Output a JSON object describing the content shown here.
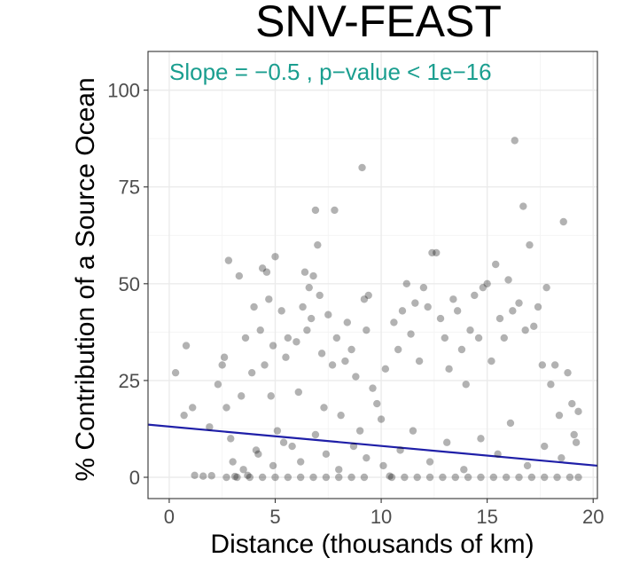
{
  "chart_data": {
    "type": "scatter",
    "title": "SNV-FEAST",
    "annotation": "Slope =  −0.5 , p−value < 1e−16",
    "annotation_color": "#1a9e8f",
    "xlabel": "Distance (thousands of km)",
    "ylabel": "% Contribution of a Source Ocean",
    "xlim": [
      -1,
      20.2
    ],
    "ylim": [
      -5.5,
      110
    ],
    "x_ticks": [
      0,
      5,
      10,
      15,
      20
    ],
    "y_ticks": [
      0,
      25,
      50,
      75,
      100
    ],
    "x_tick_labels": [
      "0",
      "5",
      "10",
      "15",
      "20"
    ],
    "y_tick_labels": [
      "0",
      "25",
      "50",
      "75",
      "100"
    ],
    "grid": true,
    "point_color": "#000000",
    "regression_line": {
      "color": "#1f1fa8",
      "x": [
        -1,
        20.2
      ],
      "y": [
        13.6,
        3.0
      ]
    },
    "points": [
      [
        0.3,
        27
      ],
      [
        0.8,
        34
      ],
      [
        0.7,
        16
      ],
      [
        1.1,
        18
      ],
      [
        1.2,
        0.5
      ],
      [
        1.6,
        0.3
      ],
      [
        1.9,
        13
      ],
      [
        2.0,
        0.4
      ],
      [
        2.3,
        24
      ],
      [
        2.5,
        29
      ],
      [
        2.6,
        31
      ],
      [
        2.8,
        56
      ],
      [
        2.7,
        18
      ],
      [
        2.9,
        10
      ],
      [
        3.1,
        0.2
      ],
      [
        3.3,
        52
      ],
      [
        3.4,
        21
      ],
      [
        3.6,
        36
      ],
      [
        3.7,
        0.5
      ],
      [
        3.9,
        27
      ],
      [
        4.0,
        44
      ],
      [
        4.1,
        7
      ],
      [
        4.3,
        38
      ],
      [
        4.4,
        54
      ],
      [
        4.6,
        53
      ],
      [
        4.7,
        46
      ],
      [
        4.5,
        29
      ],
      [
        4.8,
        21
      ],
      [
        4.9,
        34
      ],
      [
        5.0,
        57
      ],
      [
        5.1,
        12
      ],
      [
        5.3,
        43
      ],
      [
        5.5,
        31
      ],
      [
        5.6,
        36
      ],
      [
        5.8,
        8
      ],
      [
        6.0,
        35
      ],
      [
        6.1,
        22
      ],
      [
        6.3,
        44
      ],
      [
        6.4,
        53
      ],
      [
        6.5,
        38
      ],
      [
        6.6,
        49
      ],
      [
        6.7,
        41
      ],
      [
        6.8,
        52
      ],
      [
        6.9,
        69
      ],
      [
        7.0,
        60
      ],
      [
        7.1,
        47
      ],
      [
        7.2,
        32
      ],
      [
        7.3,
        18
      ],
      [
        7.5,
        42
      ],
      [
        7.7,
        29
      ],
      [
        7.8,
        69
      ],
      [
        7.9,
        36
      ],
      [
        8.1,
        16
      ],
      [
        8.3,
        30
      ],
      [
        8.4,
        40
      ],
      [
        8.6,
        33
      ],
      [
        8.8,
        26
      ],
      [
        9.0,
        12
      ],
      [
        9.1,
        80
      ],
      [
        9.2,
        46
      ],
      [
        9.3,
        38
      ],
      [
        9.4,
        47
      ],
      [
        9.6,
        23
      ],
      [
        9.8,
        19
      ],
      [
        10.0,
        15
      ],
      [
        10.2,
        28
      ],
      [
        10.4,
        0.3
      ],
      [
        10.6,
        40
      ],
      [
        10.8,
        33
      ],
      [
        11.0,
        43
      ],
      [
        11.2,
        50
      ],
      [
        11.4,
        37
      ],
      [
        11.6,
        45
      ],
      [
        11.8,
        30
      ],
      [
        12.0,
        49
      ],
      [
        12.2,
        44
      ],
      [
        12.4,
        58
      ],
      [
        12.6,
        58
      ],
      [
        12.8,
        41
      ],
      [
        13.0,
        36
      ],
      [
        13.2,
        28
      ],
      [
        13.4,
        46
      ],
      [
        13.6,
        43
      ],
      [
        13.8,
        33
      ],
      [
        14.0,
        24
      ],
      [
        14.2,
        38
      ],
      [
        14.4,
        47
      ],
      [
        14.6,
        36
      ],
      [
        14.8,
        49
      ],
      [
        15.0,
        50
      ],
      [
        15.2,
        30
      ],
      [
        15.4,
        55
      ],
      [
        15.6,
        41
      ],
      [
        15.8,
        36
      ],
      [
        16.0,
        51
      ],
      [
        16.2,
        43
      ],
      [
        16.3,
        87
      ],
      [
        16.5,
        45
      ],
      [
        16.7,
        70
      ],
      [
        16.8,
        38
      ],
      [
        17.0,
        60
      ],
      [
        17.2,
        39
      ],
      [
        17.4,
        44
      ],
      [
        17.6,
        29
      ],
      [
        17.8,
        49
      ],
      [
        18.0,
        24
      ],
      [
        18.2,
        29
      ],
      [
        18.4,
        16
      ],
      [
        18.6,
        66
      ],
      [
        18.8,
        27
      ],
      [
        19.0,
        19
      ],
      [
        19.2,
        9
      ],
      [
        19.3,
        17
      ],
      [
        3.0,
        4
      ],
      [
        3.5,
        2
      ],
      [
        4.2,
        6
      ],
      [
        4.9,
        3
      ],
      [
        5.4,
        9
      ],
      [
        6.2,
        4
      ],
      [
        6.9,
        11
      ],
      [
        7.4,
        6
      ],
      [
        8.0,
        2
      ],
      [
        8.7,
        8
      ],
      [
        9.3,
        5
      ],
      [
        10.1,
        3
      ],
      [
        10.9,
        7
      ],
      [
        11.5,
        12
      ],
      [
        12.3,
        4
      ],
      [
        13.1,
        9
      ],
      [
        13.9,
        2
      ],
      [
        14.7,
        10
      ],
      [
        15.5,
        6
      ],
      [
        16.1,
        14
      ],
      [
        16.9,
        3
      ],
      [
        17.7,
        8
      ],
      [
        18.5,
        5
      ],
      [
        19.1,
        11
      ],
      [
        2.7,
        0
      ],
      [
        3.2,
        0
      ],
      [
        3.8,
        0
      ],
      [
        4.4,
        0
      ],
      [
        5.0,
        0
      ],
      [
        5.6,
        0
      ],
      [
        6.2,
        0
      ],
      [
        6.8,
        0
      ],
      [
        7.4,
        0
      ],
      [
        8.0,
        0
      ],
      [
        8.6,
        0
      ],
      [
        9.2,
        0
      ],
      [
        10.5,
        0
      ],
      [
        11.1,
        0
      ],
      [
        11.7,
        0
      ],
      [
        12.3,
        0
      ],
      [
        12.9,
        0
      ],
      [
        13.5,
        0
      ],
      [
        14.1,
        0
      ],
      [
        14.7,
        0
      ],
      [
        15.3,
        0
      ],
      [
        15.9,
        0
      ],
      [
        16.5,
        0
      ],
      [
        17.1,
        0
      ],
      [
        17.7,
        0
      ],
      [
        18.3,
        0
      ],
      [
        18.9,
        0
      ],
      [
        19.3,
        0
      ]
    ]
  }
}
